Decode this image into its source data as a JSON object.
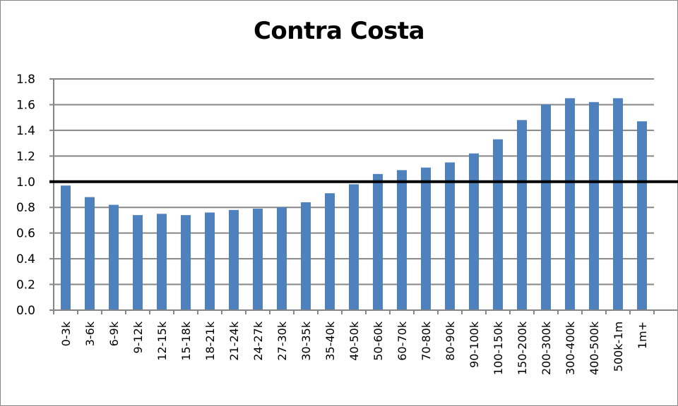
{
  "chart_data": {
    "type": "bar",
    "title": "Contra Costa",
    "xlabel": "",
    "ylabel": "",
    "ylim": [
      0,
      1.8
    ],
    "yticks": [
      "0.0",
      "0.2",
      "0.4",
      "0.6",
      "0.8",
      "1.0",
      "1.2",
      "1.4",
      "1.6",
      "1.8"
    ],
    "grid": true,
    "legend": "none",
    "reference_line": {
      "y": 1.0,
      "color": "#000000"
    },
    "bar_color": "#4F81BD",
    "categories": [
      "0-3k",
      "3-6k",
      "6-9k",
      "9-12k",
      "12-15k",
      "15-18k",
      "18-21k",
      "21-24k",
      "24-27k",
      "27-30k",
      "30-35k",
      "35-40k",
      "40-50k",
      "50-60k",
      "60-70k",
      "70-80k",
      "80-90k",
      "90-100k",
      "100-150k",
      "150-200k",
      "200-300k",
      "300-400k",
      "400-500k",
      "500k-1m",
      "1m+"
    ],
    "values": [
      0.97,
      0.88,
      0.82,
      0.74,
      0.75,
      0.74,
      0.76,
      0.78,
      0.79,
      0.8,
      0.84,
      0.91,
      0.98,
      1.06,
      1.09,
      1.11,
      1.15,
      1.22,
      1.33,
      1.48,
      1.6,
      1.65,
      1.62,
      1.65,
      1.47
    ]
  }
}
